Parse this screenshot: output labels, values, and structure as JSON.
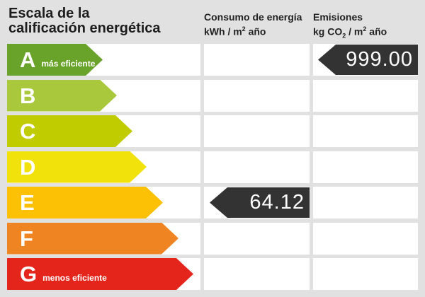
{
  "title": {
    "line1": "Escala de la",
    "line2": "calificación energética"
  },
  "columns": {
    "consumo": {
      "line1": "Consumo de energía",
      "line2_prefix": "kWh / m",
      "line2_sup": "2",
      "line2_suffix": " año"
    },
    "emisiones": {
      "line1": "Emisiones",
      "line2_prefix": "kg CO",
      "line2_sub": "2",
      "line2_mid": " / m",
      "line2_sup": "2",
      "line2_suffix": " año"
    }
  },
  "scale": {
    "rows": [
      {
        "letter": "A",
        "label": "más eficiente",
        "color": "#69a32a",
        "arrow_width": 135
      },
      {
        "letter": "B",
        "label": "",
        "color": "#a9c83c",
        "arrow_width": 155
      },
      {
        "letter": "C",
        "label": "",
        "color": "#c1cc00",
        "arrow_width": 177
      },
      {
        "letter": "D",
        "label": "",
        "color": "#f1e20c",
        "arrow_width": 197
      },
      {
        "letter": "E",
        "label": "",
        "color": "#fcc005",
        "arrow_width": 220
      },
      {
        "letter": "F",
        "label": "",
        "color": "#ee8522",
        "arrow_width": 242
      },
      {
        "letter": "G",
        "label": "menos eficiente",
        "color": "#e4251c",
        "arrow_width": 263
      }
    ]
  },
  "indicators": {
    "consumo": {
      "value": "64.12",
      "row": "E",
      "color": "#333333"
    },
    "emisiones": {
      "value": "999.00",
      "row": "A",
      "color": "#333333"
    }
  },
  "chart_data": {
    "type": "bar",
    "title": "Escala de la calificación energética",
    "categories": [
      "A",
      "B",
      "C",
      "D",
      "E",
      "F",
      "G"
    ],
    "category_labels": {
      "A": "más eficiente",
      "G": "menos eficiente"
    },
    "category_colors": [
      "#69a32a",
      "#a9c83c",
      "#c1cc00",
      "#f1e20c",
      "#fcc005",
      "#ee8522",
      "#e4251c"
    ],
    "series": [
      {
        "name": "Consumo de energía kWh/m² año",
        "value": 64.12,
        "rating": "E"
      },
      {
        "name": "Emisiones kg CO₂/m² año",
        "value": 999.0,
        "rating": "A"
      }
    ],
    "legend_position": "top",
    "grid": true
  }
}
